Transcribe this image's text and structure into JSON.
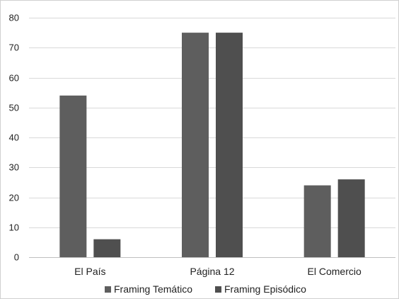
{
  "chart_data": {
    "type": "bar",
    "categories": [
      "El País",
      "Página 12",
      "El Comercio"
    ],
    "series": [
      {
        "name": "Framing Temático",
        "values": [
          54,
          75,
          24
        ],
        "color": "#5e5e5e"
      },
      {
        "name": "Framing Episódico",
        "values": [
          6,
          75,
          26
        ],
        "color": "#4f4f4f"
      }
    ],
    "yticks": [
      0,
      10,
      20,
      30,
      40,
      50,
      60,
      70,
      80
    ],
    "ylim": [
      0,
      80
    ],
    "grid": true,
    "legend_position": "bottom"
  }
}
